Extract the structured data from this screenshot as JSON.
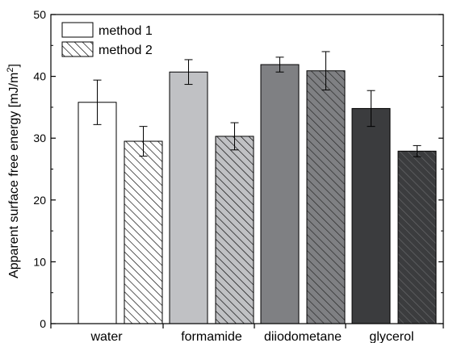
{
  "chart_data": {
    "type": "bar",
    "categories": [
      "water",
      "formamide",
      "diiodometane",
      "glycerol"
    ],
    "series": [
      {
        "name": "method 1",
        "values": [
          35.8,
          40.7,
          41.9,
          34.8
        ],
        "errors": [
          3.6,
          2.0,
          1.2,
          2.9
        ],
        "colors": [
          "#ffffff",
          "#c0c1c4",
          "#7f8083",
          "#3b3c3e"
        ],
        "hatch": false
      },
      {
        "name": "method 2",
        "values": [
          29.5,
          30.3,
          40.9,
          27.9
        ],
        "errors": [
          2.4,
          2.2,
          3.1,
          0.9
        ],
        "colors": [
          "#ffffff",
          "#c0c1c4",
          "#7f8083",
          "#3b3c3e"
        ],
        "hatch": true
      }
    ],
    "ylabel": "Apparent surface free energy [mJ/m",
    "ylabel_sup": "2",
    "ylabel_end": "]",
    "yticks": [
      "0",
      "10",
      "20",
      "30",
      "40",
      "50"
    ],
    "ylim": [
      0,
      50
    ],
    "grid": false,
    "legend_position": "top-left"
  }
}
